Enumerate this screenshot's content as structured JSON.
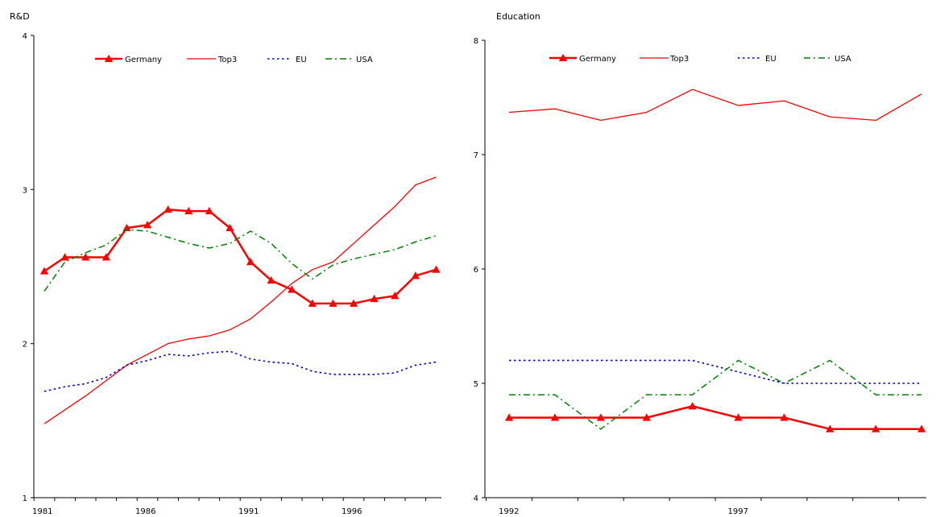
{
  "chart_data": [
    {
      "type": "line",
      "title": "R&D",
      "x": [
        1981,
        1982,
        1983,
        1984,
        1985,
        1986,
        1987,
        1988,
        1989,
        1990,
        1991,
        1992,
        1993,
        1994,
        1995,
        1996,
        1997,
        1998,
        1999,
        2000
      ],
      "xticks": [
        1981,
        1986,
        1991,
        1996
      ],
      "ylim": [
        1,
        4
      ],
      "yticks": [
        1,
        2,
        3,
        4
      ],
      "legend_position": "top",
      "series": [
        {
          "name": "Germany",
          "color": "#ff0000",
          "style": "solid-marker-triangle",
          "values": [
            2.47,
            2.56,
            2.56,
            2.56,
            2.75,
            2.77,
            2.87,
            2.86,
            2.86,
            2.75,
            2.53,
            2.41,
            2.35,
            2.26,
            2.26,
            2.26,
            2.29,
            2.31,
            2.44,
            2.48
          ]
        },
        {
          "name": "Top3",
          "color": "#ff0000",
          "style": "solid",
          "values": [
            1.48,
            1.57,
            1.66,
            1.76,
            1.86,
            1.93,
            2.0,
            2.03,
            2.05,
            2.09,
            2.16,
            2.27,
            2.39,
            2.48,
            2.53,
            2.65,
            2.77,
            2.89,
            3.03,
            3.08
          ]
        },
        {
          "name": "EU",
          "color": "#0000cc",
          "style": "dot",
          "values": [
            1.69,
            1.72,
            1.74,
            1.78,
            1.86,
            1.89,
            1.93,
            1.92,
            1.94,
            1.95,
            1.9,
            1.88,
            1.87,
            1.82,
            1.8,
            1.8,
            1.8,
            1.81,
            1.86,
            1.88
          ]
        },
        {
          "name": "USA",
          "color": "#008000",
          "style": "dashdot",
          "values": [
            2.34,
            2.53,
            2.59,
            2.64,
            2.74,
            2.73,
            2.69,
            2.65,
            2.62,
            2.65,
            2.73,
            2.65,
            2.52,
            2.42,
            2.51,
            2.55,
            2.58,
            2.61,
            2.66,
            2.7
          ]
        }
      ]
    },
    {
      "type": "line",
      "title": "Education",
      "x": [
        1992,
        1993,
        1994,
        1995,
        1996,
        1997,
        1998,
        1999,
        2000,
        2001
      ],
      "xticks": [
        1992,
        1997
      ],
      "ylim": [
        4,
        8
      ],
      "yticks": [
        4,
        5,
        6,
        7,
        8
      ],
      "legend_position": "top",
      "series": [
        {
          "name": "Germany",
          "color": "#ff0000",
          "style": "solid-marker-triangle",
          "values": [
            4.7,
            4.7,
            4.7,
            4.7,
            4.8,
            4.7,
            4.7,
            4.6,
            4.6,
            4.6
          ]
        },
        {
          "name": "Top3",
          "color": "#ff0000",
          "style": "solid",
          "values": [
            7.37,
            7.4,
            7.3,
            7.37,
            7.57,
            7.43,
            7.47,
            7.33,
            7.3,
            7.53
          ]
        },
        {
          "name": "EU",
          "color": "#0000cc",
          "style": "dot",
          "values": [
            5.2,
            5.2,
            5.2,
            5.2,
            5.2,
            5.1,
            5.0,
            5.0,
            5.0,
            5.0
          ]
        },
        {
          "name": "USA",
          "color": "#008000",
          "style": "dashdot",
          "values": [
            4.9,
            4.9,
            4.6,
            4.9,
            4.9,
            5.2,
            5.0,
            5.2,
            4.9,
            4.9
          ]
        }
      ]
    }
  ]
}
